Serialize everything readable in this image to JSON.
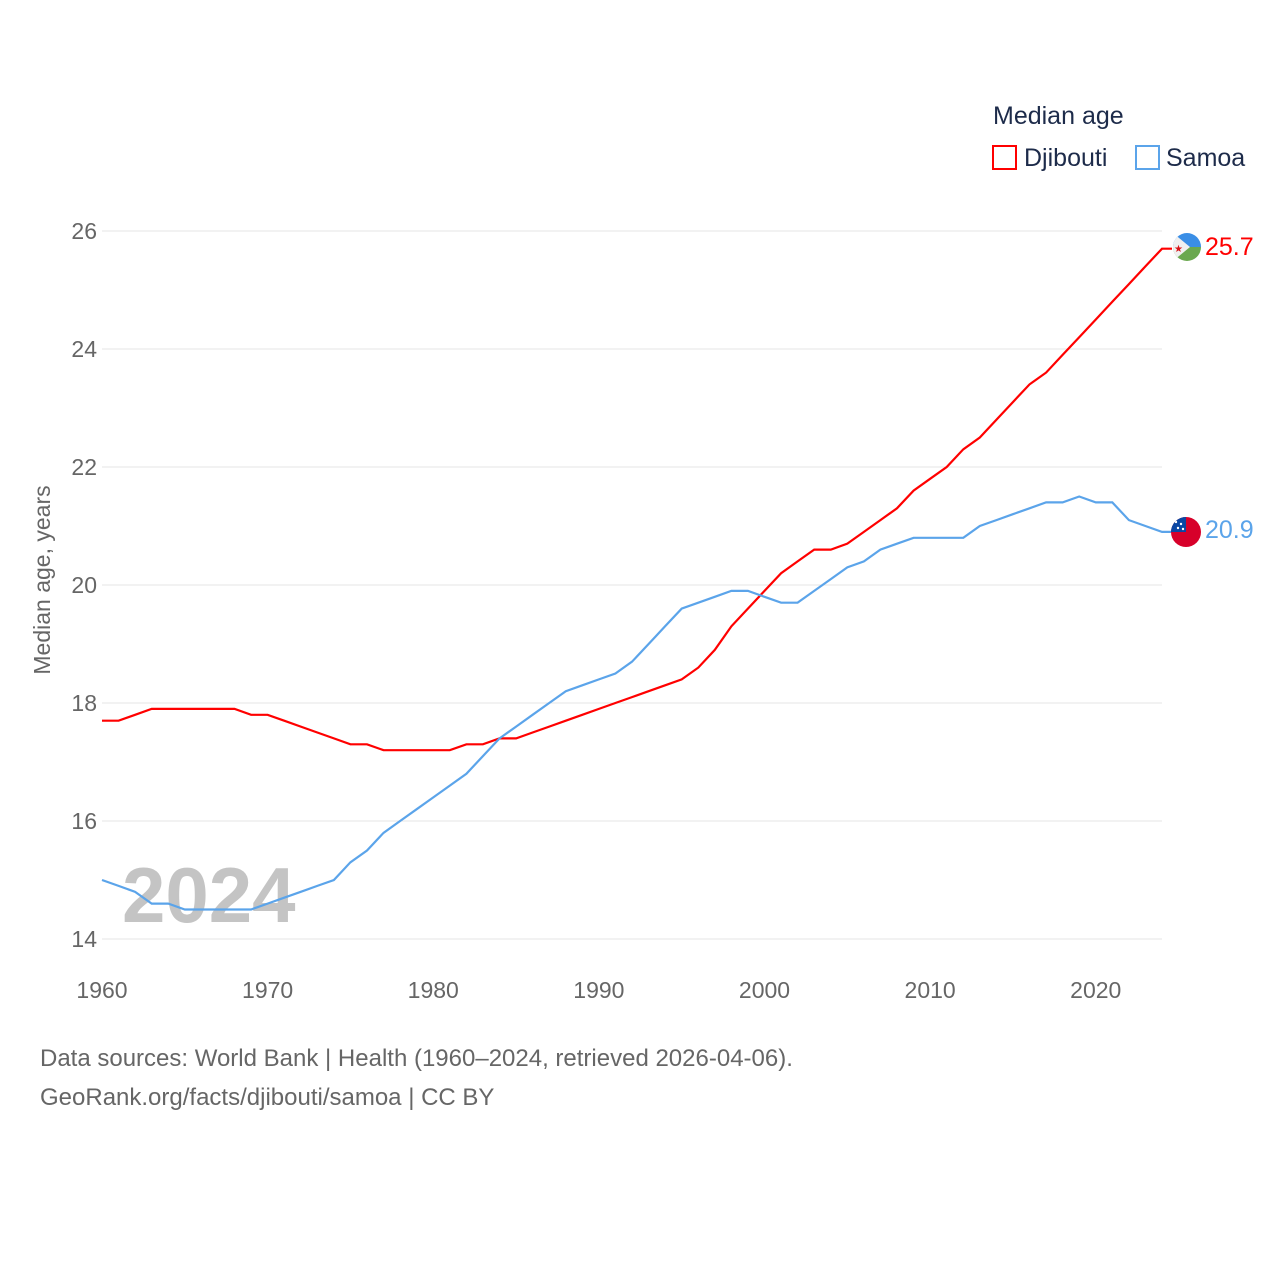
{
  "chart_data": {
    "type": "line",
    "title": "",
    "legend_title": "Median age",
    "legend_position": "top-right",
    "xlabel": "",
    "ylabel": "Median age, years",
    "xlim": [
      1960,
      2024
    ],
    "ylim": [
      14,
      26
    ],
    "x_ticks": [
      "1960",
      "1970",
      "1980",
      "1990",
      "2000",
      "2010",
      "2020"
    ],
    "y_ticks": [
      "14",
      "16",
      "18",
      "20",
      "22",
      "24",
      "26"
    ],
    "grid": true,
    "year_watermark": "2024",
    "x": [
      1960,
      1961,
      1962,
      1963,
      1964,
      1965,
      1966,
      1967,
      1968,
      1969,
      1970,
      1971,
      1972,
      1973,
      1974,
      1975,
      1976,
      1977,
      1978,
      1979,
      1980,
      1981,
      1982,
      1983,
      1984,
      1985,
      1986,
      1987,
      1988,
      1989,
      1990,
      1991,
      1992,
      1993,
      1994,
      1995,
      1996,
      1997,
      1998,
      1999,
      2000,
      2001,
      2002,
      2003,
      2004,
      2005,
      2006,
      2007,
      2008,
      2009,
      2010,
      2011,
      2012,
      2013,
      2014,
      2015,
      2016,
      2017,
      2018,
      2019,
      2020,
      2021,
      2022,
      2023,
      2024
    ],
    "series": [
      {
        "name": "Djibouti",
        "color": "#ff0000",
        "end_label": "25.7",
        "values": [
          17.7,
          17.7,
          17.8,
          17.9,
          17.9,
          17.9,
          17.9,
          17.9,
          17.9,
          17.8,
          17.8,
          17.7,
          17.6,
          17.5,
          17.4,
          17.3,
          17.3,
          17.2,
          17.2,
          17.2,
          17.2,
          17.2,
          17.3,
          17.3,
          17.4,
          17.4,
          17.5,
          17.6,
          17.7,
          17.8,
          17.9,
          18.0,
          18.1,
          18.2,
          18.3,
          18.4,
          18.6,
          18.9,
          19.3,
          19.6,
          19.9,
          20.2,
          20.4,
          20.6,
          20.6,
          20.7,
          20.9,
          21.1,
          21.3,
          21.6,
          21.8,
          22.0,
          22.3,
          22.5,
          22.8,
          23.1,
          23.4,
          23.6,
          23.9,
          24.2,
          24.5,
          24.8,
          25.1,
          25.4,
          25.7
        ]
      },
      {
        "name": "Samoa",
        "color": "#5ba4ea",
        "end_label": "20.9",
        "values": [
          15.0,
          14.9,
          14.8,
          14.6,
          14.6,
          14.5,
          14.5,
          14.5,
          14.5,
          14.5,
          14.6,
          14.7,
          14.8,
          14.9,
          15.0,
          15.3,
          15.5,
          15.8,
          16.0,
          16.2,
          16.4,
          16.6,
          16.8,
          17.1,
          17.4,
          17.6,
          17.8,
          18.0,
          18.2,
          18.3,
          18.4,
          18.5,
          18.7,
          19.0,
          19.3,
          19.6,
          19.7,
          19.8,
          19.9,
          19.9,
          19.8,
          19.7,
          19.7,
          19.9,
          20.1,
          20.3,
          20.4,
          20.6,
          20.7,
          20.8,
          20.8,
          20.8,
          20.8,
          21.0,
          21.1,
          21.2,
          21.3,
          21.4,
          21.4,
          21.5,
          21.4,
          21.4,
          21.1,
          21.0,
          20.9
        ]
      }
    ]
  },
  "footer": {
    "line1": "Data sources: World Bank | Health (1960–2024, retrieved 2026-04-06).",
    "line2": "GeoRank.org/facts/djibouti/samoa | CC BY"
  }
}
